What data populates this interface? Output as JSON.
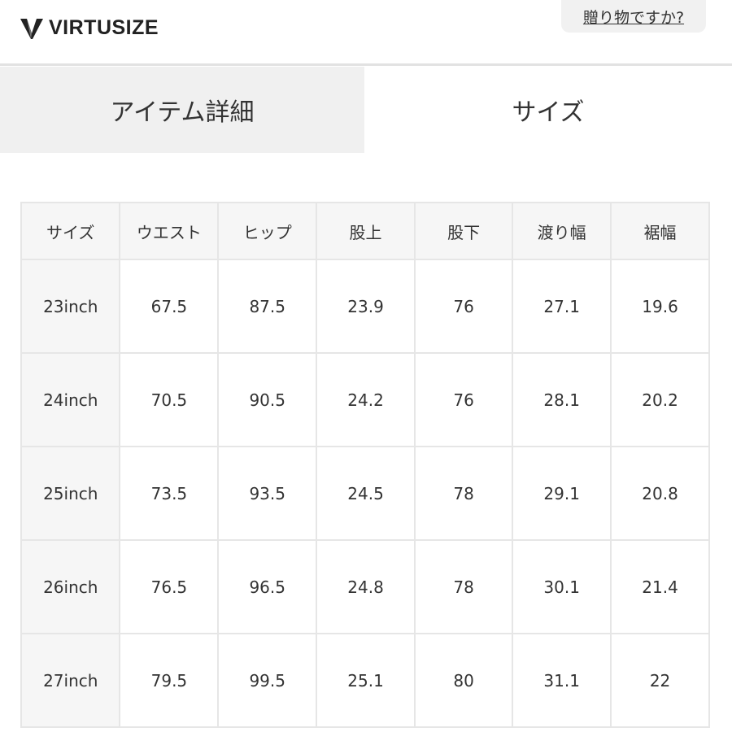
{
  "header": {
    "logo_text": "VIRTUSIZE",
    "gift_link": "贈り物ですか?"
  },
  "tabs": [
    {
      "label": "アイテム詳細",
      "active": false
    },
    {
      "label": "サイズ",
      "active": true
    }
  ],
  "table": {
    "columns": [
      "サイズ",
      "ウエスト",
      "ヒップ",
      "股上",
      "股下",
      "渡り幅",
      "裾幅"
    ],
    "rows": [
      [
        "23inch",
        "67.5",
        "87.5",
        "23.9",
        "76",
        "27.1",
        "19.6"
      ],
      [
        "24inch",
        "70.5",
        "90.5",
        "24.2",
        "76",
        "28.1",
        "20.2"
      ],
      [
        "25inch",
        "73.5",
        "93.5",
        "24.5",
        "78",
        "29.1",
        "20.8"
      ],
      [
        "26inch",
        "76.5",
        "96.5",
        "24.8",
        "78",
        "30.1",
        "21.4"
      ],
      [
        "27inch",
        "79.5",
        "99.5",
        "25.1",
        "80",
        "31.1",
        "22"
      ]
    ]
  }
}
